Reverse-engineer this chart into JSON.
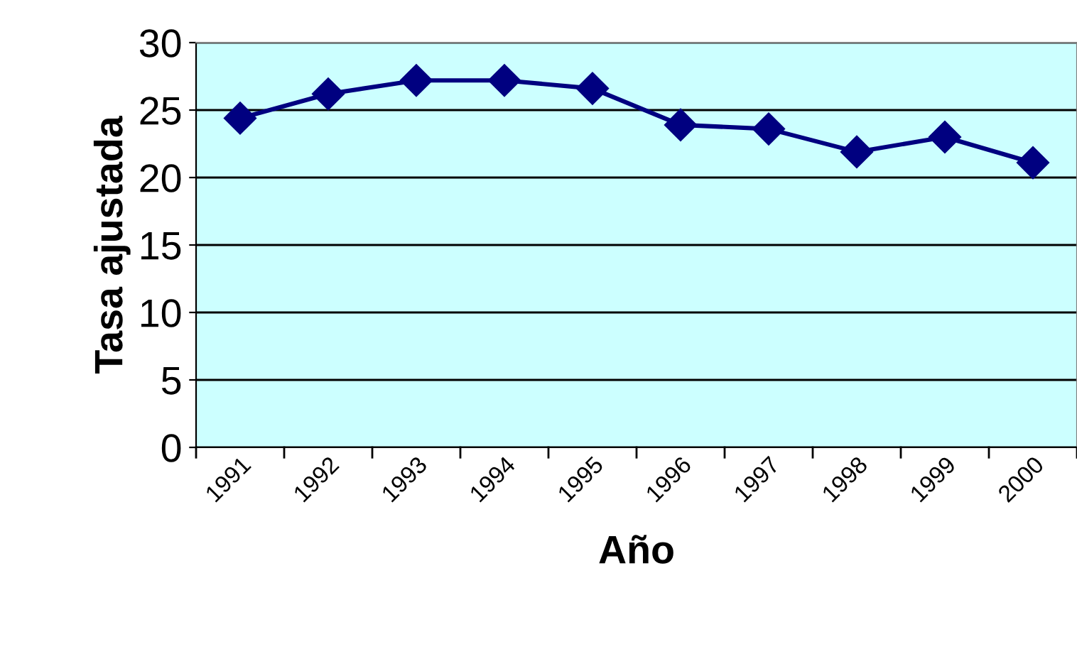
{
  "chart_data": {
    "type": "line",
    "xlabel": "Año",
    "ylabel": "Tasa ajustada",
    "categories": [
      "1991",
      "1992",
      "1993",
      "1994",
      "1995",
      "1996",
      "1997",
      "1998",
      "1999",
      "2000"
    ],
    "series": [
      {
        "color": "#000080",
        "values": [
          24.4,
          26.2,
          27.2,
          27.2,
          26.6,
          23.9,
          23.6,
          21.9,
          23.0,
          21.1
        ]
      }
    ],
    "ylim": [
      0,
      30
    ],
    "yticks": [
      0,
      5,
      10,
      15,
      20,
      25,
      30
    ],
    "grid": "y",
    "marker": "diamond",
    "line_style": "solid",
    "legend": false
  }
}
